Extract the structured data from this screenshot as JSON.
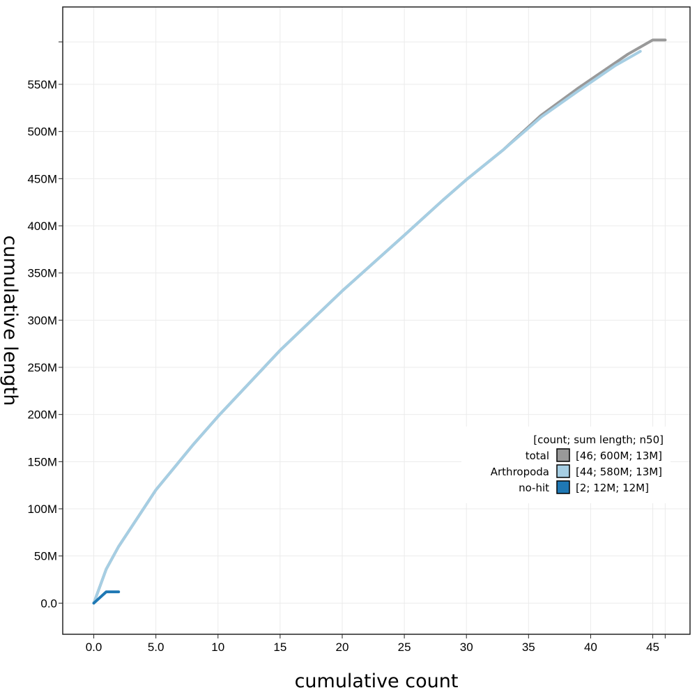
{
  "chart_data": {
    "type": "line",
    "xlabel": "cumulative count",
    "ylabel": "cumulative length",
    "xlim": [
      -2.5,
      48.0
    ],
    "ylim": [
      -33000000,
      632000000
    ],
    "x_ticks": [
      {
        "value": 0,
        "label": "0.0"
      },
      {
        "value": 5,
        "label": "5.0"
      },
      {
        "value": 10,
        "label": "10"
      },
      {
        "value": 15,
        "label": "15"
      },
      {
        "value": 20,
        "label": "20"
      },
      {
        "value": 25,
        "label": "25"
      },
      {
        "value": 30,
        "label": "30"
      },
      {
        "value": 35,
        "label": "35"
      },
      {
        "value": 40,
        "label": "40"
      },
      {
        "value": 45,
        "label": "45"
      },
      {
        "value": 46,
        "label": ""
      }
    ],
    "y_ticks": [
      {
        "value": 0,
        "label": "0.0"
      },
      {
        "value": 50000000,
        "label": "50M"
      },
      {
        "value": 100000000,
        "label": "100M"
      },
      {
        "value": 150000000,
        "label": "150M"
      },
      {
        "value": 200000000,
        "label": "200M"
      },
      {
        "value": 250000000,
        "label": "250M"
      },
      {
        "value": 300000000,
        "label": "300M"
      },
      {
        "value": 350000000,
        "label": "350M"
      },
      {
        "value": 400000000,
        "label": "400M"
      },
      {
        "value": 450000000,
        "label": "450M"
      },
      {
        "value": 500000000,
        "label": "500M"
      },
      {
        "value": 550000000,
        "label": "550M"
      },
      {
        "value": 595000000,
        "label": ""
      }
    ],
    "grid": true,
    "legend": {
      "title": "[count; sum length; n50]",
      "placement": "bottom-right"
    },
    "series": [
      {
        "name": "total",
        "stats": "[46; 600M; 13M]",
        "color": "#999999",
        "points": [
          [
            0,
            0
          ],
          [
            1,
            36000000
          ],
          [
            2,
            60000000
          ],
          [
            5,
            120000000
          ],
          [
            8,
            168000000
          ],
          [
            10,
            198000000
          ],
          [
            15,
            268000000
          ],
          [
            20,
            331000000
          ],
          [
            25,
            390000000
          ],
          [
            28,
            426000000
          ],
          [
            30,
            449000000
          ],
          [
            33,
            481000000
          ],
          [
            36,
            517000000
          ],
          [
            39,
            546000000
          ],
          [
            43,
            582000000
          ],
          [
            45,
            597000000
          ],
          [
            46,
            597000000
          ]
        ]
      },
      {
        "name": "Arthropoda",
        "stats": "[44; 580M; 13M]",
        "color": "#a6cee3",
        "points": [
          [
            0,
            0
          ],
          [
            1,
            36000000
          ],
          [
            2,
            60000000
          ],
          [
            5,
            120000000
          ],
          [
            8,
            168000000
          ],
          [
            10,
            198000000
          ],
          [
            15,
            268000000
          ],
          [
            20,
            331000000
          ],
          [
            25,
            390000000
          ],
          [
            28,
            426000000
          ],
          [
            30,
            449000000
          ],
          [
            33,
            481000000
          ],
          [
            36,
            515000000
          ],
          [
            39,
            543000000
          ],
          [
            42,
            570000000
          ],
          [
            44,
            585000000
          ]
        ]
      },
      {
        "name": "no-hit",
        "stats": "[2; 12M; 12M]",
        "color": "#1f78b4",
        "points": [
          [
            0,
            0
          ],
          [
            1,
            12000000
          ],
          [
            2,
            12000000
          ]
        ]
      }
    ]
  }
}
